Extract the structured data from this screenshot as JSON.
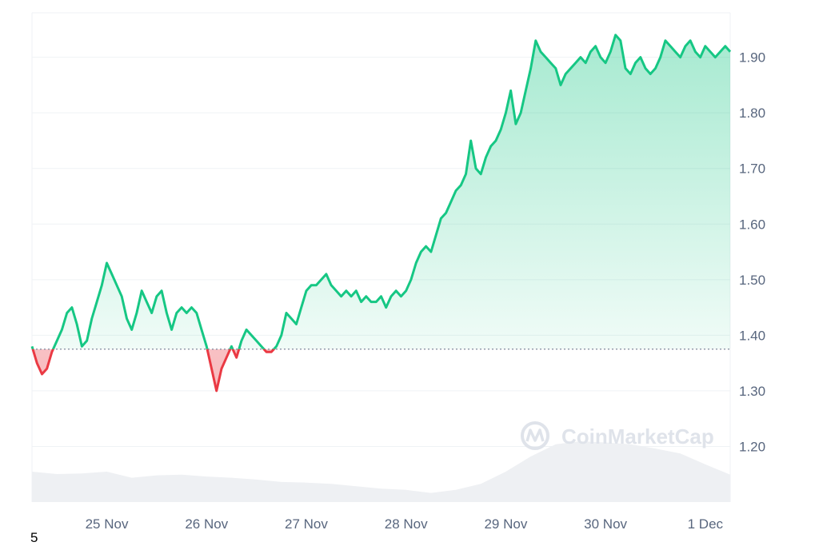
{
  "footnote": "5",
  "watermark": {
    "text": "CoinMarketCap",
    "icon": "coinmarketcap-logo-icon"
  },
  "colors": {
    "up_line": "#16c784",
    "down_line": "#ea3943",
    "up_fill": "#16c784",
    "down_fill": "#ea3943",
    "volume": "#eef0f3",
    "grid": "#eff2f5",
    "baseline": "#808a9d"
  },
  "chart_data": {
    "type": "area",
    "baseline": 1.375,
    "ylim": [
      1.1,
      1.98
    ],
    "yticks": [
      "1.90",
      "1.80",
      "1.70",
      "1.60",
      "1.50",
      "1.40",
      "1.30",
      "1.20"
    ],
    "ytick_values": [
      1.9,
      1.8,
      1.7,
      1.6,
      1.5,
      1.4,
      1.3,
      1.2
    ],
    "xlim": [
      0,
      7
    ],
    "xticks": [
      "25 Nov",
      "26 Nov",
      "27 Nov",
      "28 Nov",
      "29 Nov",
      "30 Nov",
      "1 Dec"
    ],
    "xtick_values": [
      0.75,
      1.75,
      2.75,
      3.75,
      4.75,
      5.75,
      6.75
    ],
    "grid": true,
    "series": [
      {
        "x": [
          0,
          0.05,
          0.1,
          0.15,
          0.2,
          0.25,
          0.3,
          0.35,
          0.4,
          0.45,
          0.5,
          0.55,
          0.6,
          0.65,
          0.7,
          0.75,
          0.8,
          0.85,
          0.9,
          0.95,
          1,
          1.05,
          1.1,
          1.15,
          1.2,
          1.25,
          1.3,
          1.35,
          1.4,
          1.45,
          1.5,
          1.55,
          1.6,
          1.65,
          1.7,
          1.75,
          1.8,
          1.85,
          1.9,
          1.95,
          2,
          2.05,
          2.1,
          2.15,
          2.2,
          2.25,
          2.3,
          2.35,
          2.4,
          2.45,
          2.5,
          2.55,
          2.6,
          2.65,
          2.7,
          2.75,
          2.8,
          2.85,
          2.9,
          2.95,
          3,
          3.05,
          3.1,
          3.15,
          3.2,
          3.25,
          3.3,
          3.35,
          3.4,
          3.45,
          3.5,
          3.55,
          3.6,
          3.65,
          3.7,
          3.75,
          3.8,
          3.85,
          3.9,
          3.95,
          4,
          4.05,
          4.1,
          4.15,
          4.2,
          4.25,
          4.3,
          4.35,
          4.4,
          4.45,
          4.5,
          4.55,
          4.6,
          4.65,
          4.7,
          4.75,
          4.8,
          4.85,
          4.9,
          4.95,
          5,
          5.05,
          5.1,
          5.15,
          5.2,
          5.25,
          5.3,
          5.35,
          5.4,
          5.45,
          5.5,
          5.55,
          5.6,
          5.65,
          5.7,
          5.75,
          5.8,
          5.85,
          5.9,
          5.95,
          6,
          6.05,
          6.1,
          6.15,
          6.2,
          6.25,
          6.3,
          6.35,
          6.4,
          6.45,
          6.5,
          6.55,
          6.6,
          6.65,
          6.7,
          6.75,
          6.8,
          6.85,
          6.9,
          6.95,
          7
        ],
        "y": [
          1.38,
          1.35,
          1.33,
          1.34,
          1.37,
          1.39,
          1.41,
          1.44,
          1.45,
          1.42,
          1.38,
          1.39,
          1.43,
          1.46,
          1.49,
          1.53,
          1.51,
          1.49,
          1.47,
          1.43,
          1.41,
          1.44,
          1.48,
          1.46,
          1.44,
          1.47,
          1.48,
          1.44,
          1.41,
          1.44,
          1.45,
          1.44,
          1.45,
          1.44,
          1.41,
          1.38,
          1.34,
          1.3,
          1.34,
          1.36,
          1.38,
          1.36,
          1.39,
          1.41,
          1.4,
          1.39,
          1.38,
          1.37,
          1.37,
          1.38,
          1.4,
          1.44,
          1.43,
          1.42,
          1.45,
          1.48,
          1.49,
          1.49,
          1.5,
          1.51,
          1.49,
          1.48,
          1.47,
          1.48,
          1.47,
          1.48,
          1.46,
          1.47,
          1.46,
          1.46,
          1.47,
          1.45,
          1.47,
          1.48,
          1.47,
          1.48,
          1.5,
          1.53,
          1.55,
          1.56,
          1.55,
          1.58,
          1.61,
          1.62,
          1.64,
          1.66,
          1.67,
          1.69,
          1.75,
          1.7,
          1.69,
          1.72,
          1.74,
          1.75,
          1.77,
          1.8,
          1.84,
          1.78,
          1.8,
          1.84,
          1.88,
          1.93,
          1.91,
          1.9,
          1.89,
          1.88,
          1.85,
          1.87,
          1.88,
          1.89,
          1.9,
          1.89,
          1.91,
          1.92,
          1.9,
          1.89,
          1.91,
          1.94,
          1.93,
          1.88,
          1.87,
          1.89,
          1.9,
          1.88,
          1.87,
          1.88,
          1.9,
          1.93,
          1.92,
          1.91,
          1.9,
          1.92,
          1.93,
          1.91,
          1.9,
          1.92,
          1.91,
          1.9,
          1.91,
          1.92,
          1.91
        ]
      }
    ],
    "volume": {
      "x": [
        0,
        0.25,
        0.5,
        0.75,
        1,
        1.25,
        1.5,
        1.75,
        2,
        2.25,
        2.5,
        2.75,
        3,
        3.25,
        3.5,
        3.75,
        4,
        4.25,
        4.5,
        4.75,
        5,
        5.25,
        5.5,
        5.75,
        6,
        6.25,
        6.5,
        6.75,
        7
      ],
      "y": [
        0.5,
        0.46,
        0.47,
        0.5,
        0.4,
        0.44,
        0.45,
        0.42,
        0.4,
        0.37,
        0.33,
        0.32,
        0.3,
        0.26,
        0.22,
        0.2,
        0.15,
        0.2,
        0.3,
        0.5,
        0.75,
        0.95,
        1.0,
        0.98,
        0.95,
        0.88,
        0.8,
        0.62,
        0.45
      ]
    }
  }
}
